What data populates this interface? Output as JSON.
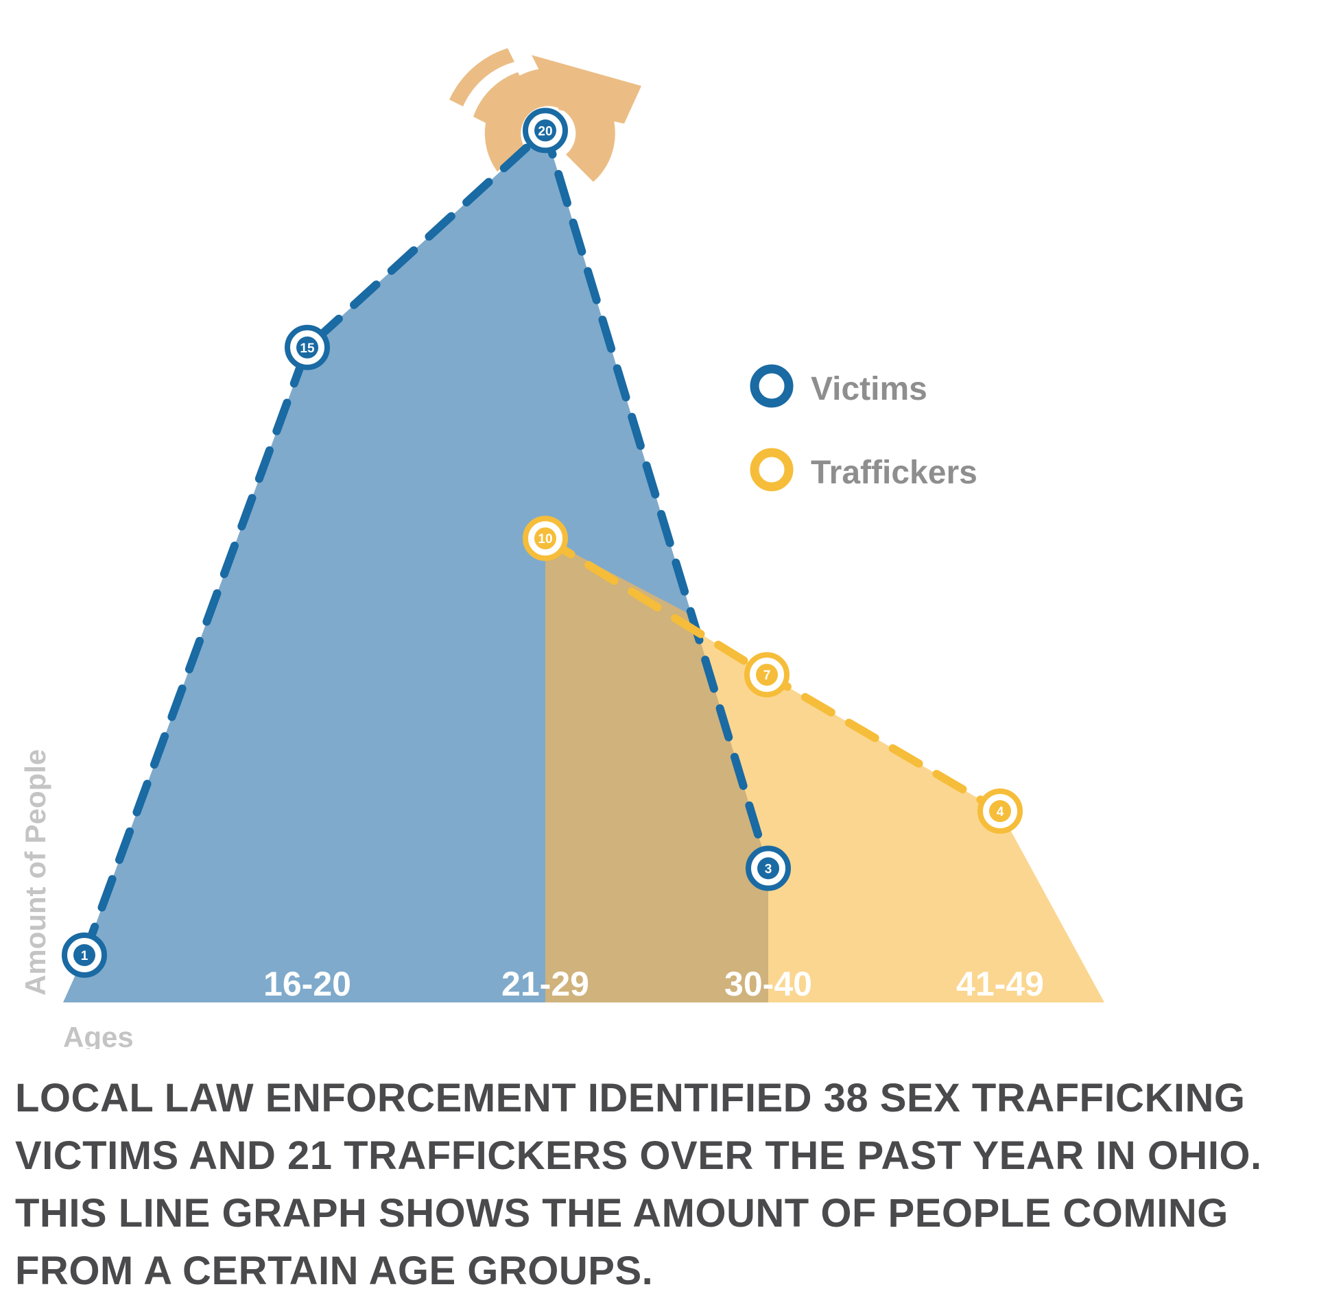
{
  "chart_data": {
    "type": "area",
    "categories": [
      "16-20",
      "21-29",
      "30-40",
      "41-49"
    ],
    "xlabel": "Ages",
    "ylabel": "Amount of People",
    "series": [
      {
        "name": "Victims",
        "x": [
          "",
          "16-20",
          "21-29",
          "30-40"
        ],
        "values": [
          1,
          15,
          20,
          3
        ],
        "color": "#1a6aa3",
        "fill": "#7faacb"
      },
      {
        "name": "Traffickers",
        "x": [
          "21-29",
          "30-40",
          "41-49"
        ],
        "values": [
          10,
          7,
          4
        ],
        "color": "#f6bd3a",
        "fill": "#fbd690"
      }
    ],
    "legend": "right",
    "grid": false,
    "icon": "spotlight-icon"
  },
  "caption": "LOCAL LAW ENFORCEMENT IDENTIFIED 38 SEX TRAFFICKING VICTIMS AND 21 TRAFFICKERS OVER THE PAST YEAR IN OHIO. THIS LINE GRAPH SHOWS THE AMOUNT OF PEOPLE COMING FROM A CERTAIN AGE GROUPS.",
  "colors": {
    "overlap": "#cfb27c",
    "spotlight": "#ebbd85",
    "axis_text": "#c4c4c4",
    "legend_text": "#8e8e8e",
    "caption": "#4a4a4c"
  }
}
